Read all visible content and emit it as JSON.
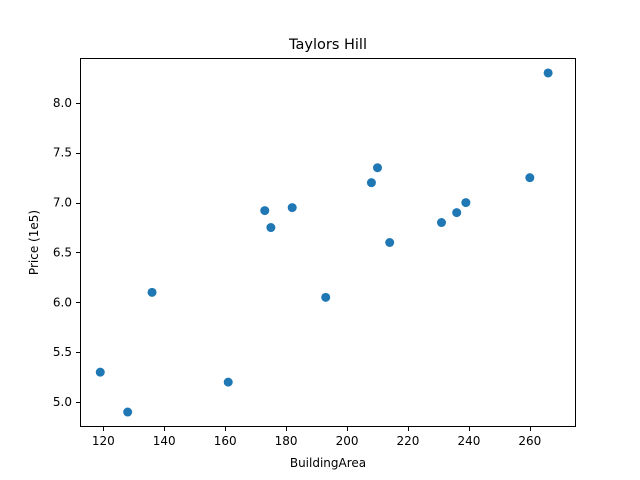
{
  "chart_data": {
    "type": "scatter",
    "title": "Taylors Hill",
    "xlabel": "BuildingArea",
    "ylabel": "Price (1e5)",
    "xlim": [
      112.35,
      275.15
    ],
    "ylim": [
      4.75,
      8.45
    ],
    "xticks": [
      120,
      140,
      160,
      180,
      200,
      220,
      240,
      260
    ],
    "yticks": [
      5.0,
      5.5,
      6.0,
      6.5,
      7.0,
      7.5,
      8.0
    ],
    "xtick_labels": [
      "120",
      "140",
      "160",
      "180",
      "200",
      "220",
      "240",
      "260"
    ],
    "ytick_labels": [
      "5.0",
      "5.5",
      "6.0",
      "6.5",
      "7.0",
      "7.5",
      "8.0"
    ],
    "grid": false,
    "marker_color": "#1f77b4",
    "series": [
      {
        "points": [
          [
            119,
            5.3
          ],
          [
            128,
            4.9
          ],
          [
            136,
            6.1
          ],
          [
            161,
            5.2
          ],
          [
            173,
            6.92
          ],
          [
            175,
            6.75
          ],
          [
            182,
            6.95
          ],
          [
            193,
            6.05
          ],
          [
            208,
            7.2
          ],
          [
            210,
            7.35
          ],
          [
            214,
            6.6
          ],
          [
            231,
            6.8
          ],
          [
            236,
            6.9
          ],
          [
            239,
            7.0
          ],
          [
            260,
            7.25
          ],
          [
            266,
            8.3
          ]
        ]
      }
    ]
  }
}
